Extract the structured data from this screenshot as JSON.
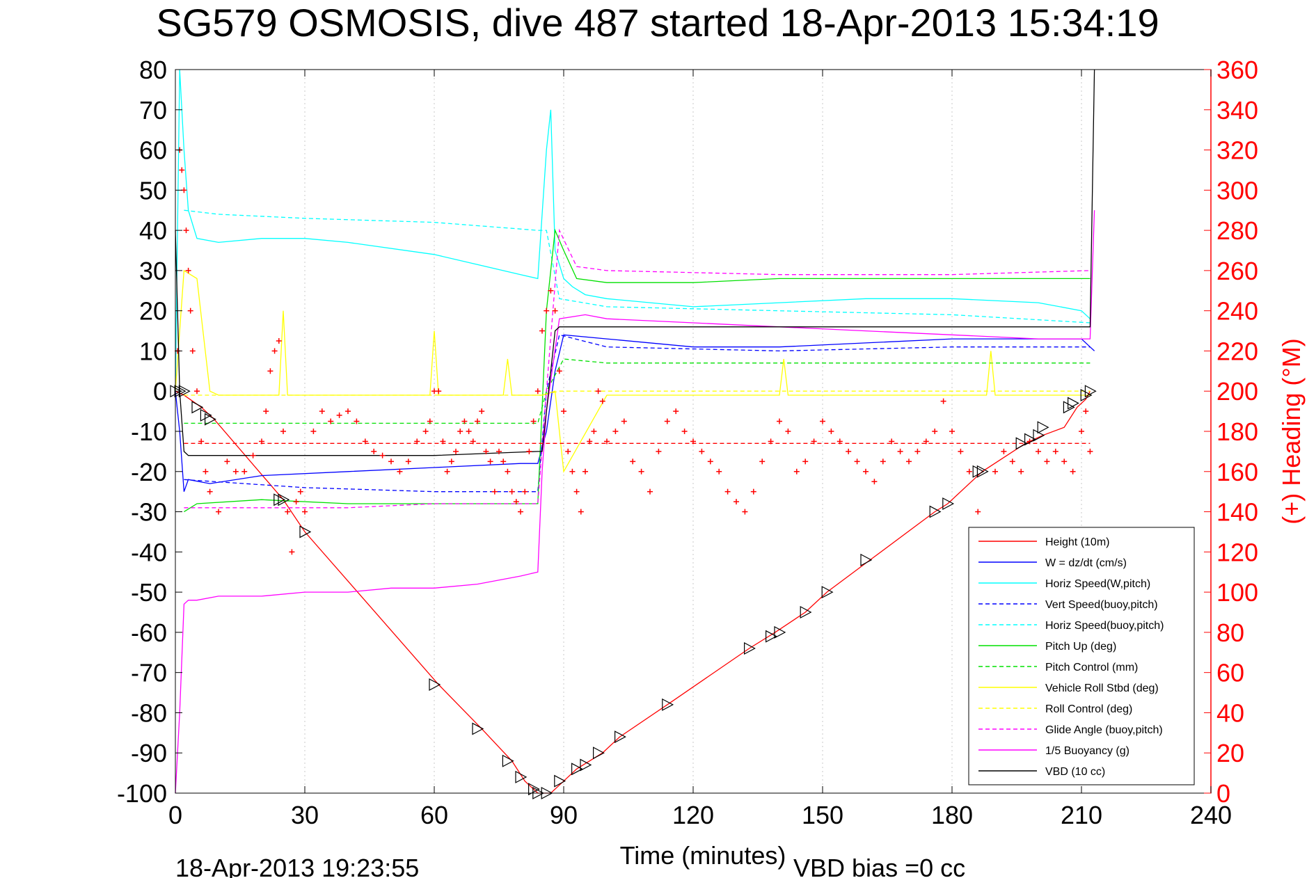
{
  "chart_data": {
    "type": "line",
    "title": "SG579 OSMOSIS, dive 487 started 18-Apr-2013 15:34:19",
    "xlabel": "Time (minutes)",
    "ylabel_right": "(+) Heading (°M)",
    "footer_left": "18-Apr-2013 19:23:55",
    "footer_right": "VBD bias =0 cc",
    "xlim": [
      0,
      240
    ],
    "ylim_left": [
      -100,
      80
    ],
    "ylim_right": [
      0,
      360
    ],
    "x_ticks": [
      0,
      30,
      60,
      90,
      120,
      150,
      180,
      210,
      240
    ],
    "x_tick_labels": [
      "0",
      "30",
      "60",
      "90",
      "120",
      "150",
      "180",
      "210",
      "240"
    ],
    "y_ticks_left": [
      80,
      70,
      60,
      50,
      40,
      30,
      20,
      10,
      0,
      -10,
      -20,
      -30,
      -40,
      -50,
      -60,
      -70,
      -80,
      -90,
      -100
    ],
    "y_tick_labels_left": [
      "80",
      "70",
      "60",
      "50",
      "40",
      "30",
      "20",
      "10",
      "0",
      "-10",
      "-20",
      "-30",
      "-40",
      "-50",
      "-60",
      "-70",
      "-80",
      "-90",
      "-100"
    ],
    "y_ticks_right": [
      360,
      340,
      320,
      300,
      280,
      260,
      240,
      220,
      200,
      180,
      160,
      140,
      120,
      100,
      80,
      60,
      40,
      20,
      0
    ],
    "y_tick_labels_right": [
      "360",
      "340",
      "320",
      "300",
      "280",
      "260",
      "240",
      "220",
      "200",
      "180",
      "160",
      "140",
      "120",
      "100",
      "80",
      "60",
      "40",
      "20",
      "0"
    ],
    "grid": true,
    "legend_position": "lower-right",
    "colors": {
      "height": "#ff0000",
      "w": "#0000ff",
      "horiz_speed": "#00ffff",
      "pitch": "#00e000",
      "roll": "#ffff00",
      "glide": "#ff00ff",
      "vbd": "#000000",
      "heading": "#ff0000"
    },
    "series": [
      {
        "name": "Height (10m)",
        "color": "#ff0000",
        "dash": "",
        "values_x": [
          0,
          2,
          6,
          9,
          25,
          30,
          61,
          71,
          78,
          81,
          84,
          85,
          87,
          90,
          93,
          99,
          103,
          114,
          133,
          139,
          146,
          151,
          161,
          176,
          179,
          187,
          197,
          201,
          206,
          209,
          211,
          212
        ],
        "values_y": [
          0,
          -1,
          -4,
          -7,
          -27,
          -35,
          -73,
          -84,
          -92,
          -97,
          -100,
          -100,
          -100,
          -97,
          -94,
          -90,
          -86,
          -78,
          -64,
          -60,
          -55,
          -50,
          -42,
          -30,
          -28,
          -20,
          -13,
          -11,
          -9,
          -4,
          -2,
          0
        ]
      },
      {
        "name": "W = dz/dt (cm/s)",
        "color": "#0000ff",
        "dash": "",
        "values_x": [
          0,
          1,
          2,
          3,
          8,
          20,
          40,
          60,
          80,
          84,
          86,
          88,
          90,
          100,
          120,
          140,
          160,
          180,
          200,
          210,
          212,
          213
        ],
        "values_y": [
          0,
          -10,
          -25,
          -22,
          -23,
          -21,
          -20,
          -19,
          -18,
          -18,
          -10,
          5,
          14,
          13,
          11,
          11,
          12,
          13,
          13,
          13,
          11,
          10
        ]
      },
      {
        "name": "Horiz Speed(W,pitch)",
        "color": "#00ffff",
        "dash": "",
        "values_x": [
          0,
          1,
          2,
          3,
          5,
          10,
          20,
          30,
          40,
          60,
          80,
          84,
          86,
          87,
          88,
          90,
          92,
          95,
          100,
          120,
          140,
          160,
          180,
          200,
          210,
          212
        ],
        "values_y": [
          0,
          80,
          60,
          45,
          38,
          37,
          38,
          38,
          37,
          34,
          29,
          28,
          60,
          70,
          35,
          28,
          26,
          24,
          23,
          21,
          22,
          23,
          23,
          22,
          20,
          18
        ]
      },
      {
        "name": "Vert Speed(buoy,pitch)",
        "color": "#0000ff",
        "dash": "6,4",
        "values_x": [
          2,
          30,
          60,
          84,
          86,
          89,
          100,
          140,
          180,
          212
        ],
        "values_y": [
          -22,
          -24,
          -25,
          -25,
          0,
          14,
          11,
          10,
          11,
          11
        ]
      },
      {
        "name": "Horiz Speed(buoy,pitch)",
        "color": "#00ffff",
        "dash": "6,4",
        "values_x": [
          2,
          10,
          30,
          60,
          84,
          86,
          89,
          100,
          140,
          180,
          212
        ],
        "values_y": [
          45,
          44,
          43,
          42,
          40,
          40,
          23,
          21,
          20,
          19,
          17
        ]
      },
      {
        "name": "Pitch Up (deg)",
        "color": "#00e000",
        "dash": "",
        "values_x": [
          2,
          5,
          20,
          40,
          60,
          84,
          86,
          88,
          90,
          93,
          100,
          120,
          140,
          160,
          180,
          200,
          212
        ],
        "values_y": [
          -30,
          -28,
          -27,
          -28,
          -28,
          -28,
          20,
          40,
          35,
          28,
          27,
          27,
          28,
          28,
          28,
          28,
          28
        ]
      },
      {
        "name": "Pitch Control (mm)",
        "color": "#00e000",
        "dash": "6,4",
        "values_x": [
          2,
          20,
          40,
          60,
          84,
          86,
          90,
          100,
          140,
          180,
          212
        ],
        "values_y": [
          -8,
          -8,
          -8,
          -8,
          -8,
          0,
          8,
          7,
          7,
          7,
          7
        ]
      },
      {
        "name": "Vehicle Roll Stbd (deg)",
        "color": "#ffff00",
        "dash": "",
        "values_x": [
          0,
          2,
          5,
          8,
          10,
          24,
          25,
          26,
          30,
          59,
          60,
          61,
          65,
          76,
          77,
          78,
          85,
          88,
          90,
          100,
          110,
          120,
          140,
          141,
          142,
          160,
          180,
          188,
          189,
          190,
          200,
          212
        ],
        "values_y": [
          0,
          30,
          28,
          0,
          -1,
          -1,
          20,
          -1,
          -1,
          -1,
          15,
          -1,
          -1,
          -1,
          8,
          -1,
          -1,
          0,
          -20,
          -1,
          -1,
          -1,
          -1,
          8,
          -1,
          -1,
          -1,
          -1,
          10,
          -1,
          -1,
          -1
        ]
      },
      {
        "name": "Roll Control (deg)",
        "color": "#ffff00",
        "dash": "6,4",
        "values_x": [
          2,
          60,
          85,
          89,
          140,
          212
        ],
        "values_y": [
          -1,
          -1,
          -1,
          0,
          0,
          0
        ]
      },
      {
        "name": "Glide Angle (buoy,pitch)",
        "color": "#ff00ff",
        "dash": "6,4",
        "values_x": [
          2,
          20,
          40,
          60,
          84,
          86,
          89,
          93,
          100,
          140,
          180,
          212
        ],
        "values_y": [
          -29,
          -29,
          -29,
          -28,
          -28,
          0,
          40,
          31,
          30,
          29,
          29,
          30
        ]
      },
      {
        "name": "1/5 Buoyancy (g)",
        "color": "#ff00ff",
        "dash": "",
        "values_x": [
          0,
          1,
          2,
          3,
          5,
          10,
          20,
          30,
          40,
          50,
          60,
          70,
          80,
          84,
          85,
          86,
          89,
          95,
          100,
          120,
          140,
          160,
          180,
          200,
          210,
          212,
          213
        ],
        "values_y": [
          -100,
          -80,
          -53,
          -52,
          -52,
          -51,
          -51,
          -50,
          -50,
          -49,
          -49,
          -48,
          -46,
          -45,
          -20,
          -5,
          18,
          19,
          18,
          17,
          16,
          15,
          14,
          13,
          13,
          13,
          45
        ]
      },
      {
        "name": "VBD (10 cc)",
        "color": "#000000",
        "dash": "",
        "values_x": [
          0,
          1,
          2,
          3,
          10,
          40,
          60,
          84,
          85,
          88,
          89,
          120,
          150,
          180,
          212,
          213
        ],
        "values_y": [
          40,
          0,
          -15,
          -16,
          -16,
          -16,
          -16,
          -15,
          -15,
          15,
          16,
          16,
          16,
          16,
          16,
          80
        ]
      },
      {
        "name": "Horizontal roll dashed red",
        "color": "#ff0000",
        "dash": "6,4",
        "values_x": [
          2,
          212
        ],
        "values_y": [
          -13,
          -13
        ]
      }
    ],
    "heading": {
      "marker": "+",
      "color": "#ff0000",
      "x": [
        0.5,
        1,
        1.5,
        2,
        2.5,
        3,
        3.5,
        4,
        5,
        6,
        7,
        8,
        10,
        12,
        14,
        16,
        18,
        20,
        21,
        22,
        23,
        24,
        25,
        26,
        27,
        28,
        29,
        30,
        32,
        34,
        36,
        38,
        40,
        42,
        44,
        46,
        48,
        50,
        52,
        54,
        56,
        58,
        59,
        60,
        61,
        62,
        63,
        64,
        65,
        66,
        67,
        68,
        69,
        70,
        71,
        72,
        73,
        74,
        75,
        76,
        77,
        78,
        79,
        80,
        81,
        82,
        83,
        84,
        85,
        86,
        87,
        88,
        89,
        90,
        91,
        92,
        93,
        94,
        95,
        96,
        97,
        98,
        99,
        100,
        102,
        104,
        106,
        108,
        110,
        112,
        114,
        116,
        118,
        120,
        122,
        124,
        126,
        128,
        130,
        132,
        134,
        136,
        138,
        140,
        142,
        144,
        146,
        148,
        150,
        152,
        154,
        156,
        158,
        160,
        162,
        164,
        166,
        168,
        170,
        172,
        174,
        176,
        178,
        180,
        182,
        184,
        186,
        188,
        190,
        192,
        194,
        196,
        198,
        200,
        202,
        204,
        206,
        208,
        210,
        211,
        212
      ],
      "y": [
        220,
        320,
        310,
        300,
        280,
        260,
        240,
        220,
        200,
        175,
        160,
        150,
        140,
        165,
        160,
        160,
        168,
        175,
        190,
        210,
        220,
        225,
        180,
        140,
        120,
        145,
        150,
        140,
        180,
        190,
        185,
        188,
        190,
        185,
        175,
        170,
        168,
        165,
        160,
        165,
        175,
        180,
        185,
        200,
        200,
        175,
        160,
        165,
        170,
        180,
        185,
        180,
        175,
        185,
        190,
        170,
        165,
        150,
        170,
        165,
        160,
        150,
        145,
        140,
        150,
        170,
        185,
        200,
        230,
        240,
        250,
        240,
        210,
        190,
        170,
        160,
        150,
        140,
        160,
        175,
        180,
        200,
        195,
        175,
        180,
        185,
        165,
        160,
        150,
        170,
        185,
        190,
        180,
        175,
        170,
        165,
        160,
        150,
        145,
        140,
        150,
        165,
        175,
        185,
        180,
        160,
        165,
        175,
        185,
        180,
        175,
        170,
        165,
        160,
        155,
        165,
        175,
        170,
        165,
        170,
        175,
        180,
        195,
        180,
        170,
        160,
        140,
        130,
        160,
        170,
        165,
        160,
        175,
        170,
        165,
        170,
        165,
        160,
        180,
        190,
        170
      ]
    },
    "triangle_markers": {
      "x": [
        0,
        1,
        2,
        5,
        7,
        8,
        24,
        25,
        30,
        60,
        70,
        77,
        80,
        83,
        84,
        86,
        89,
        93,
        95,
        98,
        103,
        114,
        133,
        138,
        140,
        146,
        151,
        160,
        176,
        179,
        186,
        187,
        196,
        198,
        200,
        201,
        207,
        208,
        211,
        212
      ],
      "y": [
        0,
        0,
        0,
        -4,
        -6,
        -7,
        -27,
        -27,
        -35,
        -73,
        -84,
        -92,
        -96,
        -99,
        -100,
        -100,
        -97,
        -94,
        -93,
        -90,
        -86,
        -78,
        -64,
        -61,
        -60,
        -55,
        -50,
        -42,
        -30,
        -28,
        -20,
        -20,
        -13,
        -12,
        -11,
        -9,
        -4,
        -3,
        -1,
        0
      ]
    },
    "legend": [
      {
        "label": "Height (10m)",
        "color": "#ff0000",
        "dash": ""
      },
      {
        "label": "W = dz/dt (cm/s)",
        "color": "#0000ff",
        "dash": ""
      },
      {
        "label": "Horiz Speed(W,pitch)",
        "color": "#00ffff",
        "dash": ""
      },
      {
        "label": "Vert Speed(buoy,pitch)",
        "color": "#0000ff",
        "dash": "6,4"
      },
      {
        "label": "Horiz Speed(buoy,pitch)",
        "color": "#00ffff",
        "dash": "6,4"
      },
      {
        "label": "Pitch Up (deg)",
        "color": "#00e000",
        "dash": ""
      },
      {
        "label": "Pitch Control (mm)",
        "color": "#00e000",
        "dash": "6,4"
      },
      {
        "label": "Vehicle Roll Stbd (deg)",
        "color": "#ffff00",
        "dash": ""
      },
      {
        "label": "Roll Control (deg)",
        "color": "#ffff00",
        "dash": "6,4"
      },
      {
        "label": "Glide Angle (buoy,pitch)",
        "color": "#ff00ff",
        "dash": "6,4"
      },
      {
        "label": "1/5 Buoyancy (g)",
        "color": "#ff00ff",
        "dash": ""
      },
      {
        "label": "VBD (10 cc)",
        "color": "#000000",
        "dash": ""
      }
    ]
  }
}
